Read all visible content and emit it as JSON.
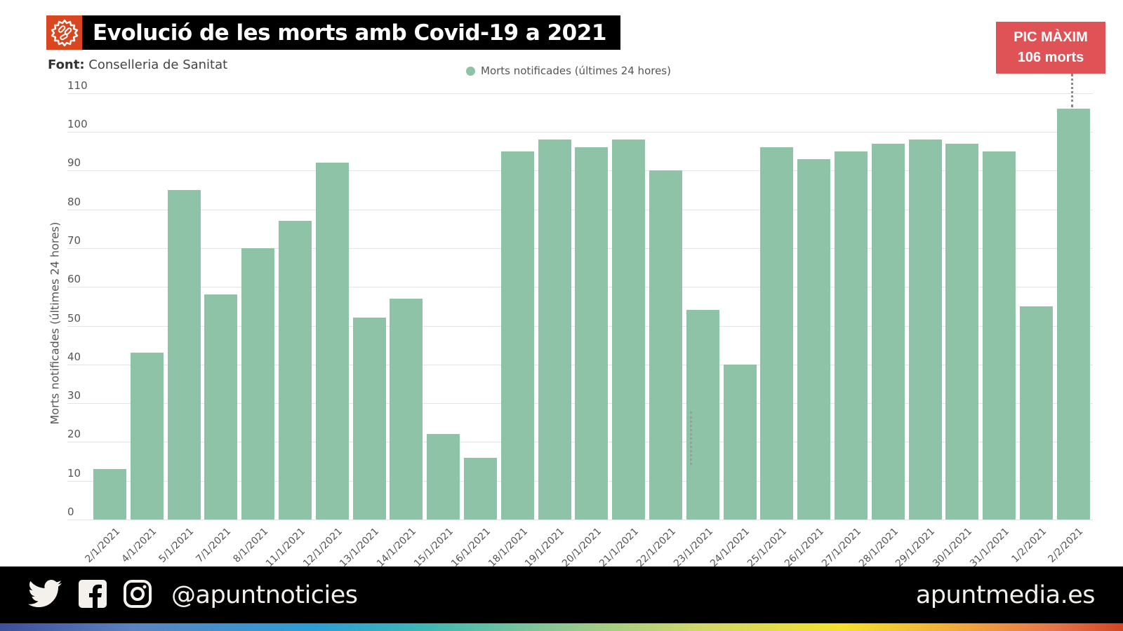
{
  "header": {
    "title": "Evolució de les morts amb Covid-19 a 2021",
    "logo_icon": "virus-icon",
    "source_label": "Font:",
    "source_value": "Conselleria de Sanitat"
  },
  "legend": {
    "label": "Morts notificades (últimes 24 hores)",
    "color": "#8ec3a7"
  },
  "annotation": {
    "line1": "PIC MÀXIM",
    "line2": "106 morts",
    "color": "#df5256"
  },
  "footer": {
    "handle": "@apuntnoticies",
    "site": "apuntmedia.es",
    "icons": [
      "twitter-icon",
      "facebook-icon",
      "instagram-icon"
    ]
  },
  "chart_data": {
    "type": "bar",
    "title": "Evolució de les morts amb Covid-19 a 2021",
    "subtitle": "Font: Conselleria de Sanitat",
    "xlabel": "",
    "ylabel": "Morts notificades (últimes 24 hores)",
    "ylim": [
      0,
      110
    ],
    "yticks": [
      0,
      10,
      20,
      30,
      40,
      50,
      60,
      70,
      80,
      90,
      100,
      110
    ],
    "grid": true,
    "legend_position": "top-center",
    "categories": [
      "2/1/2021",
      "4/1/2021",
      "5/1/2021",
      "7/1/2021",
      "8/1/2021",
      "11/1/2021",
      "12/1/2021",
      "13/1/2021",
      "14/1/2021",
      "15/1/2021",
      "16/1/2021",
      "18/1/2021",
      "19/1/2021",
      "20/1/2021",
      "21/1/2021",
      "22/1/2021",
      "23/1/2021",
      "24/1/2021",
      "25/1/2021",
      "26/1/2021",
      "27/1/2021",
      "28/1/2021",
      "29/1/2021",
      "30/1/2021",
      "31/1/2021",
      "1/2/2021",
      "2/2/2021"
    ],
    "series": [
      {
        "name": "Morts notificades (últimes 24 hores)",
        "color": "#8ec3a7",
        "values": [
          13,
          43,
          85,
          58,
          70,
          77,
          92,
          52,
          57,
          22,
          16,
          95,
          98,
          96,
          98,
          90,
          54,
          40,
          96,
          93,
          95,
          97,
          98,
          97,
          95,
          55,
          106
        ]
      }
    ],
    "annotations": [
      {
        "category": "2/2/2021",
        "text": "PIC MÀXIM 106 morts"
      }
    ]
  }
}
